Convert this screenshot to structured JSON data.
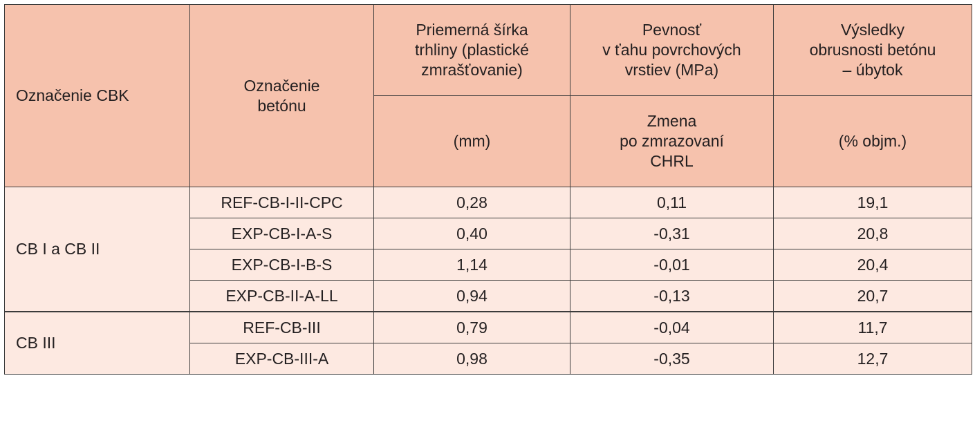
{
  "header": {
    "cbk": "Označenie CBK",
    "beton": [
      "Označenie",
      "betónu"
    ],
    "crack": [
      "Priemerná šírka",
      "trhliny (plastické",
      "zmrašťovanie)"
    ],
    "crack_unit": "(mm)",
    "strength": [
      "Pevnosť",
      "v ťahu povrchových",
      "vrstiev (MPa)"
    ],
    "strength_sub": [
      "Zmena",
      "po zmrazovaní",
      "CHRL"
    ],
    "abrasion": [
      "Výsledky",
      "obrusnosti betónu",
      "– úbytok"
    ],
    "abrasion_unit": "(% objm.)"
  },
  "groups": [
    {
      "name": "CB I a CB II",
      "rows": [
        {
          "beton": "REF-CB-I-II-CPC",
          "crack": "0,28",
          "strength": "0,11",
          "abrasion": "19,1"
        },
        {
          "beton": "EXP-CB-I-A-S",
          "crack": "0,40",
          "strength": "-0,31",
          "abrasion": "20,8"
        },
        {
          "beton": "EXP-CB-I-B-S",
          "crack": "1,14",
          "strength": "-0,01",
          "abrasion": "20,4"
        },
        {
          "beton": "EXP-CB-II-A-LL",
          "crack": "0,94",
          "strength": "-0,13",
          "abrasion": "20,7"
        }
      ]
    },
    {
      "name": "CB III",
      "rows": [
        {
          "beton": "REF-CB-III",
          "crack": "0,79",
          "strength": "-0,04",
          "abrasion": "11,7"
        },
        {
          "beton": "EXP-CB-III-A",
          "crack": "0,98",
          "strength": "-0,35",
          "abrasion": "12,7"
        }
      ]
    }
  ]
}
